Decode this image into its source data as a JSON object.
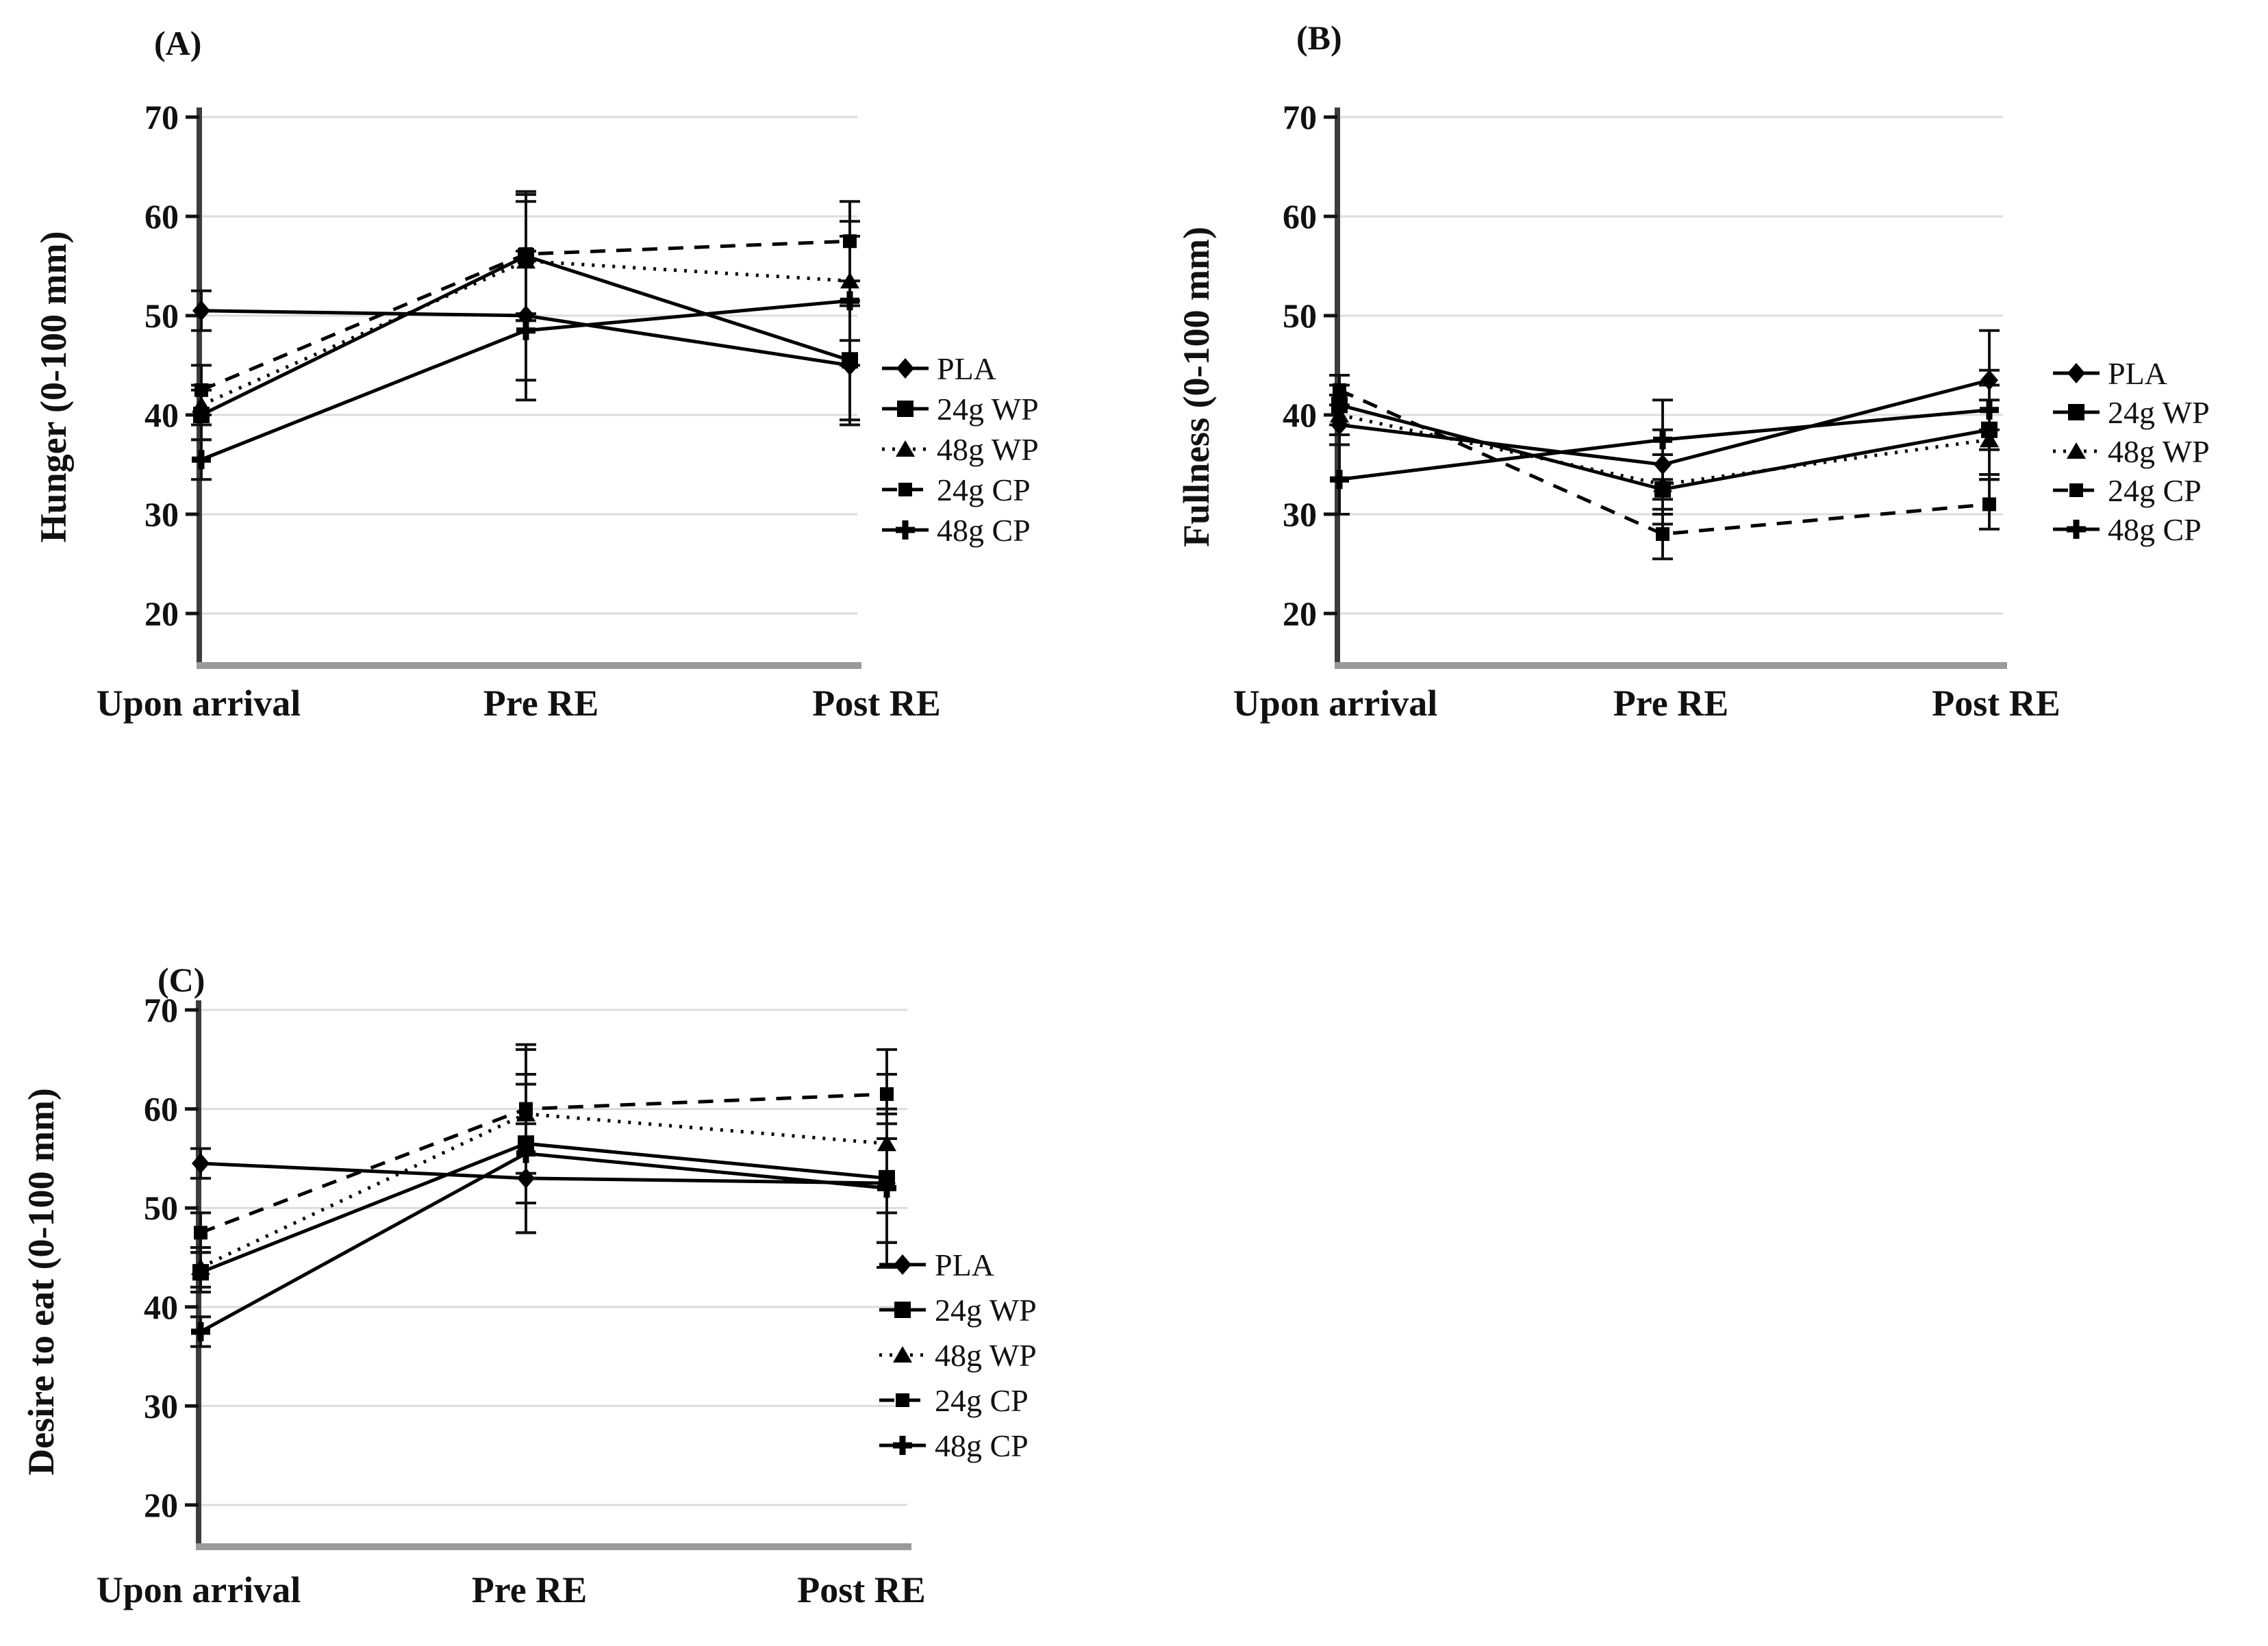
{
  "figure": {
    "background": "#ffffff",
    "series_color": "#000000",
    "grid_color": "#dcdcdc",
    "axis_color": "#3d3d3d",
    "baseline_color": "#9a9a9a"
  },
  "legend": {
    "items": [
      {
        "label": "PLA",
        "marker": "diamond",
        "line": "solid"
      },
      {
        "label": "24g WP",
        "marker": "square",
        "line": "solid"
      },
      {
        "label": "48g WP",
        "marker": "triangle",
        "line": "dotted"
      },
      {
        "label": "24g CP",
        "marker": "small-square",
        "line": "dashed"
      },
      {
        "label": "48g CP",
        "marker": "plus",
        "line": "solid"
      }
    ]
  },
  "chart_data": [
    {
      "id": "A",
      "type": "line",
      "panel_label": "(A)",
      "ylabel": "Hunger (0-100 mm)",
      "categories": [
        "Upon arrival",
        "Pre RE",
        "Post RE"
      ],
      "yticks": [
        20,
        30,
        40,
        50,
        60,
        70
      ],
      "ylim": [
        15,
        72
      ],
      "grid": true,
      "legend_position": "right-of-plot",
      "series": [
        {
          "name": "PLA",
          "marker": "diamond",
          "line": "solid",
          "values": [
            50.5,
            50.0,
            45.0
          ],
          "errors": [
            2.0,
            6.5,
            6.0
          ]
        },
        {
          "name": "24g WP",
          "marker": "square",
          "line": "solid",
          "values": [
            40.0,
            56.0,
            45.5
          ],
          "errors": [
            2.5,
            6.5,
            6.0
          ]
        },
        {
          "name": "48g WP",
          "marker": "triangle",
          "line": "dotted",
          "values": [
            41.0,
            55.5,
            53.5
          ],
          "errors": [
            2.0,
            6.0,
            6.0
          ]
        },
        {
          "name": "24g CP",
          "marker": "small-square",
          "line": "dashed",
          "values": [
            42.5,
            56.2,
            57.5
          ],
          "errors": [
            2.5,
            6.0,
            4.0
          ]
        },
        {
          "name": "48g CP",
          "marker": "plus",
          "line": "solid",
          "values": [
            35.5,
            48.5,
            51.5
          ],
          "errors": [
            2.0,
            7.0,
            6.5
          ]
        }
      ]
    },
    {
      "id": "B",
      "type": "line",
      "panel_label": "(B)",
      "ylabel": "Fullness (0-100 mm)",
      "categories": [
        "Upon arrival",
        "Pre RE",
        "Post RE"
      ],
      "yticks": [
        20,
        30,
        40,
        50,
        60,
        70
      ],
      "ylim": [
        15,
        72
      ],
      "grid": true,
      "legend_position": "right-of-plot",
      "series": [
        {
          "name": "PLA",
          "marker": "diamond",
          "line": "solid",
          "values": [
            39.0,
            35.0,
            43.5
          ],
          "errors": [
            2.0,
            3.5,
            5.0
          ]
        },
        {
          "name": "24g WP",
          "marker": "square",
          "line": "solid",
          "values": [
            41.0,
            32.5,
            38.5
          ],
          "errors": [
            2.0,
            3.5,
            4.5
          ]
        },
        {
          "name": "48g WP",
          "marker": "triangle",
          "line": "dotted",
          "values": [
            40.0,
            33.0,
            37.5
          ],
          "errors": [
            2.0,
            3.0,
            4.0
          ]
        },
        {
          "name": "24g CP",
          "marker": "small-square",
          "line": "dashed",
          "values": [
            42.5,
            28.0,
            31.0
          ],
          "errors": [
            1.5,
            2.5,
            2.5
          ]
        },
        {
          "name": "48g CP",
          "marker": "plus",
          "line": "solid",
          "values": [
            33.5,
            37.5,
            40.5
          ],
          "errors": [
            3.5,
            4.0,
            4.0
          ]
        }
      ]
    },
    {
      "id": "C",
      "type": "line",
      "panel_label": "(C)",
      "ylabel": "Desire to eat (0-100 mm)",
      "categories": [
        "Upon arrival",
        "Pre RE",
        "Post RE"
      ],
      "yticks": [
        20,
        30,
        40,
        50,
        60,
        70
      ],
      "ylim": [
        15,
        72
      ],
      "grid": true,
      "legend_position": "right-of-plot",
      "series": [
        {
          "name": "PLA",
          "marker": "diamond",
          "line": "solid",
          "values": [
            54.5,
            53.0,
            52.5
          ],
          "errors": [
            1.5,
            5.5,
            6.0
          ]
        },
        {
          "name": "24g WP",
          "marker": "square",
          "line": "solid",
          "values": [
            43.5,
            56.5,
            53.0
          ],
          "errors": [
            2.0,
            6.0,
            6.5
          ]
        },
        {
          "name": "48g WP",
          "marker": "triangle",
          "line": "dotted",
          "values": [
            44.0,
            59.5,
            56.5
          ],
          "errors": [
            2.0,
            6.5,
            7.0
          ]
        },
        {
          "name": "24g CP",
          "marker": "small-square",
          "line": "dashed",
          "values": [
            47.5,
            60.0,
            61.5
          ],
          "errors": [
            2.0,
            6.5,
            4.5
          ]
        },
        {
          "name": "48g CP",
          "marker": "plus",
          "line": "solid",
          "values": [
            37.5,
            55.5,
            52.0
          ],
          "errors": [
            1.5,
            8.0,
            8.0
          ]
        }
      ]
    }
  ]
}
